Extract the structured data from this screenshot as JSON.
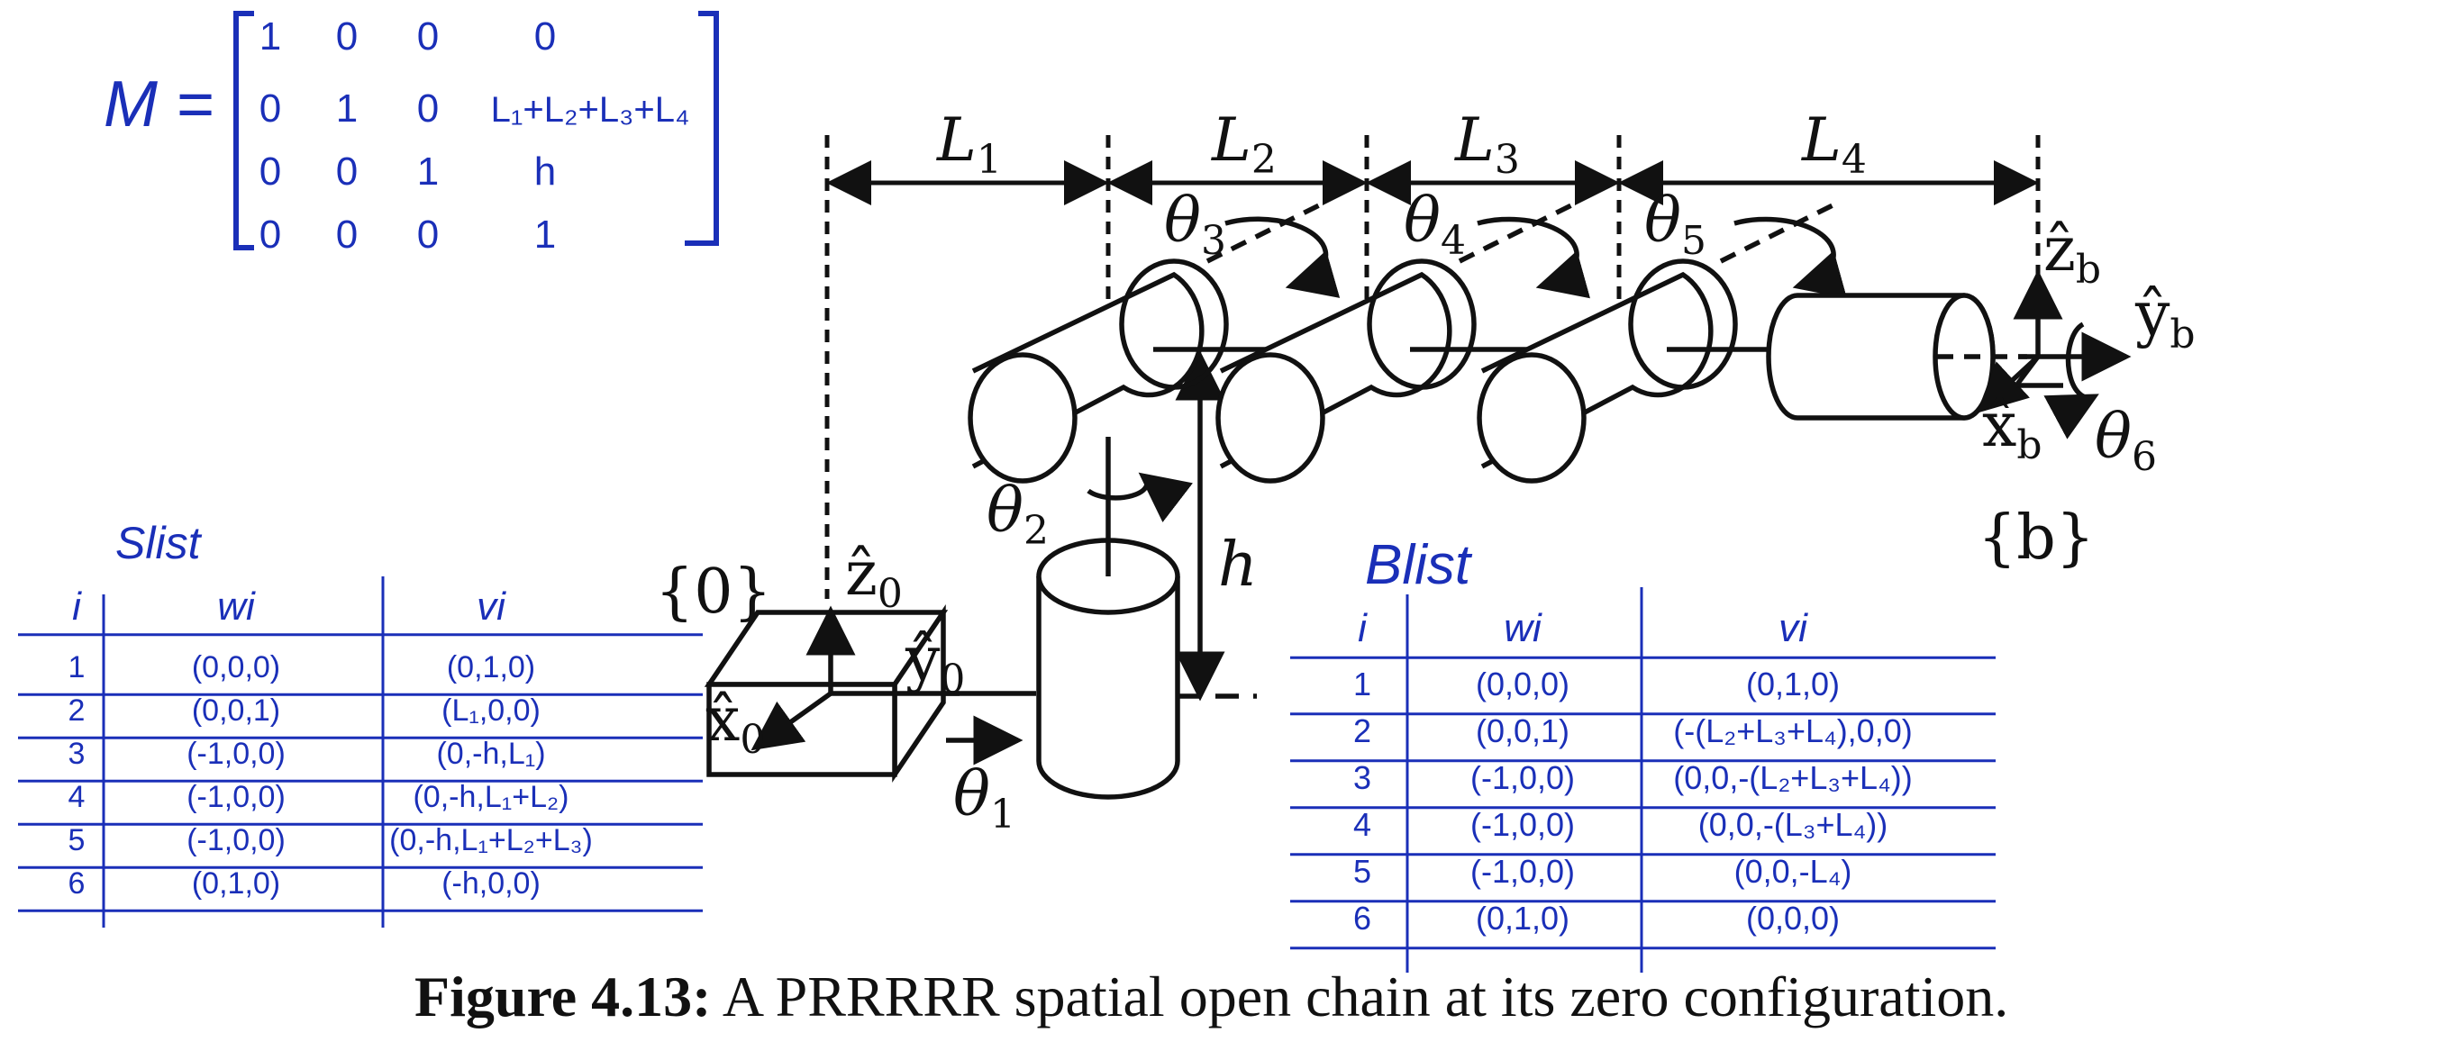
{
  "figure": {
    "caption_label": "Figure 4.13:",
    "caption_text": " A PRRRRR spatial open chain at its zero configuration."
  },
  "diagram": {
    "lengths": [
      "L",
      "L",
      "L",
      "L"
    ],
    "length_subs": [
      "1",
      "2",
      "3",
      "4"
    ],
    "joint_angles": [
      {
        "sym": "θ",
        "sub": "1"
      },
      {
        "sym": "θ",
        "sub": "2"
      },
      {
        "sym": "θ",
        "sub": "3"
      },
      {
        "sym": "θ",
        "sub": "4"
      },
      {
        "sym": "θ",
        "sub": "5"
      },
      {
        "sym": "θ",
        "sub": "6"
      }
    ],
    "height_label": "h",
    "frame_0": "{0}",
    "frame_b": "{b}",
    "axis_0": {
      "z": "ẑ",
      "y": "ŷ",
      "x": "x̂",
      "sub": "0"
    },
    "axis_b": {
      "z": "ẑ",
      "y": "ŷ",
      "x": "x̂",
      "sub": "b"
    }
  },
  "m_matrix": {
    "label": "M =",
    "rows": [
      [
        "1",
        "0",
        "0",
        "0"
      ],
      [
        "0",
        "1",
        "0",
        "L₁+L₂+L₃+L₄"
      ],
      [
        "0",
        "0",
        "1",
        "h"
      ],
      [
        "0",
        "0",
        "0",
        "1"
      ]
    ]
  },
  "slist": {
    "title": "Slist",
    "headers": [
      "i",
      "wi",
      "vi"
    ],
    "rows": [
      [
        "1",
        "(0,0,0)",
        "(0,1,0)"
      ],
      [
        "2",
        "(0,0,1)",
        "(L₁,0,0)"
      ],
      [
        "3",
        "(-1,0,0)",
        "(0,-h,L₁)"
      ],
      [
        "4",
        "(-1,0,0)",
        "(0,-h,L₁+L₂)"
      ],
      [
        "5",
        "(-1,0,0)",
        "(0,-h,L₁+L₂+L₃)"
      ],
      [
        "6",
        "(0,1,0)",
        "(-h,0,0)"
      ]
    ]
  },
  "blist": {
    "title": "Blist",
    "headers": [
      "i",
      "wi",
      "vi"
    ],
    "rows": [
      [
        "1",
        "(0,0,0)",
        "(0,1,0)"
      ],
      [
        "2",
        "(0,0,1)",
        "(-(L₂+L₃+L₄),0,0)"
      ],
      [
        "3",
        "(-1,0,0)",
        "(0,0,-(L₂+L₃+L₄))"
      ],
      [
        "4",
        "(-1,0,0)",
        "(0,0,-(L₃+L₄))"
      ],
      [
        "5",
        "(-1,0,0)",
        "(0,0,-L₄)"
      ],
      [
        "6",
        "(0,1,0)",
        "(0,0,0)"
      ]
    ]
  },
  "colors": {
    "ink": "#111111",
    "handwriting": "#1a2fb8"
  }
}
